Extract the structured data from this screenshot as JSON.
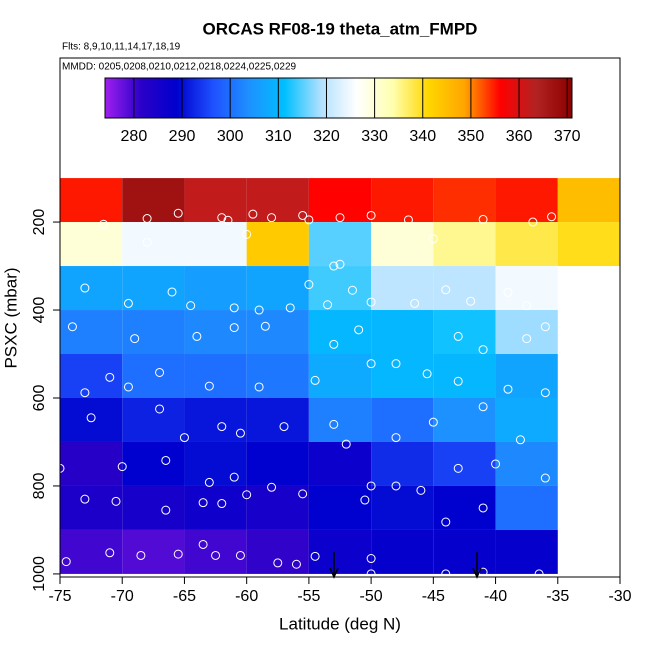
{
  "chart_data": {
    "type": "binned-scatter",
    "title": "ORCAS RF08-19 theta_atm_FMPD",
    "subtitle": "Flts: 8,9,10,11,14,17,18,19",
    "annotation": "MMDD: 0205,0208,0210,0212,0218,0224,0225,0229",
    "x_label": "Latitude (deg N)",
    "y_label": "PSXC (mbar)",
    "xlim": [
      -75,
      -30
    ],
    "xticks": [
      -75,
      -70,
      -65,
      -60,
      -55,
      -50,
      -45,
      -40,
      -35,
      -30
    ],
    "ylim": [
      1007,
      -173
    ],
    "yticks": [
      200,
      400,
      600,
      800,
      1000
    ],
    "clim": [
      274,
      371
    ],
    "cticks": [
      280,
      290,
      300,
      310,
      320,
      330,
      340,
      350,
      360,
      370
    ],
    "colorscale": [
      "#a020f0",
      "#2a00c8",
      "#0000cd",
      "#1e50ff",
      "#1e90ff",
      "#00bfff",
      "#b0e0ff",
      "#ffffff",
      "#ffffb0",
      "#ffd700",
      "#ffa500",
      "#ff0000",
      "#b22222",
      "#8b0000"
    ],
    "lat_edges": [
      -75,
      -70,
      -65,
      -60,
      -55,
      -50,
      -45,
      -40,
      -35,
      -30
    ],
    "p_edges": [
      100,
      200,
      300,
      400,
      500,
      600,
      700,
      800,
      900,
      1000
    ],
    "values": [
      [
        355,
        367,
        362,
        362,
        356,
        355,
        354,
        355,
        345
      ],
      [
        330,
        325,
        325,
        343,
        315,
        330,
        335,
        338,
        340
      ],
      [
        307,
        307,
        306,
        307,
        314,
        320,
        320,
        325,
        null
      ],
      [
        302,
        302,
        303,
        303,
        310,
        310,
        312,
        318,
        null
      ],
      [
        295,
        300,
        300,
        301,
        308,
        310,
        310,
        307,
        null
      ],
      [
        290,
        292,
        291,
        291,
        302,
        300,
        304,
        308,
        null
      ],
      [
        282,
        289,
        290,
        289,
        287,
        293,
        295,
        303,
        null
      ],
      [
        284,
        285,
        286,
        285,
        289,
        290,
        289,
        300,
        null
      ],
      [
        280,
        279,
        280,
        281,
        287,
        288,
        288,
        288,
        null
      ]
    ],
    "point_color": "#ffffff",
    "points": {
      "x": [
        -71.5,
        -68,
        -65.5,
        -62,
        -61.5,
        -59.5,
        -58,
        -55.5,
        -55,
        -52.5,
        -50,
        -47,
        -41,
        -37,
        -35.5,
        -68,
        -60,
        -53,
        -52.5,
        -45,
        -73,
        -69.5,
        -66,
        -64.5,
        -61,
        -59,
        -56.5,
        -55,
        -53.5,
        -51.5,
        -50,
        -46.5,
        -44,
        -42,
        -39,
        -37.5,
        -74,
        -69,
        -64,
        -61,
        -58.5,
        -53,
        -51,
        -48,
        -43,
        -41,
        -37.5,
        -36,
        -73,
        -71,
        -69.5,
        -67,
        -63,
        -59,
        -54.5,
        -50,
        -45.5,
        -43,
        -39,
        -36,
        -72.5,
        -67,
        -65,
        -62,
        -60.5,
        -57,
        -53,
        -52,
        -48,
        -45,
        -41,
        -38,
        -75,
        -70,
        -66.5,
        -63,
        -61,
        -58,
        -55.5,
        -50,
        -46,
        -43,
        -40,
        -36,
        -73,
        -70.5,
        -66.5,
        -63.5,
        -62,
        -60,
        -50.5,
        -48,
        -44,
        -41,
        -74.5,
        -71,
        -68.5,
        -65.5,
        -63.5,
        -62.5,
        -60.5,
        -57.5,
        -56,
        -54.5,
        -50,
        -50,
        -44,
        -41,
        -36.5
      ],
      "y": [
        205,
        192,
        180,
        190,
        196,
        182,
        190,
        185,
        195,
        190,
        185,
        195,
        194,
        200,
        188,
        246,
        228,
        300,
        296,
        238,
        350,
        385,
        359,
        390,
        395,
        400,
        395,
        342,
        388,
        355,
        382,
        385,
        354,
        380,
        360,
        390,
        438,
        465,
        460,
        440,
        437,
        478,
        445,
        522,
        460,
        490,
        465,
        438,
        588,
        553,
        575,
        542,
        573,
        575,
        560,
        522,
        545,
        562,
        580,
        588,
        645,
        625,
        690,
        665,
        680,
        665,
        660,
        705,
        690,
        655,
        620,
        695,
        760,
        756,
        742,
        792,
        780,
        803,
        818,
        800,
        810,
        760,
        750,
        782,
        830,
        835,
        855,
        838,
        840,
        820,
        832,
        800,
        882,
        850,
        972,
        952,
        958,
        955,
        933,
        958,
        958,
        975,
        978,
        960,
        965,
        1000,
        1000,
        996,
        1000
      ]
    }
  }
}
